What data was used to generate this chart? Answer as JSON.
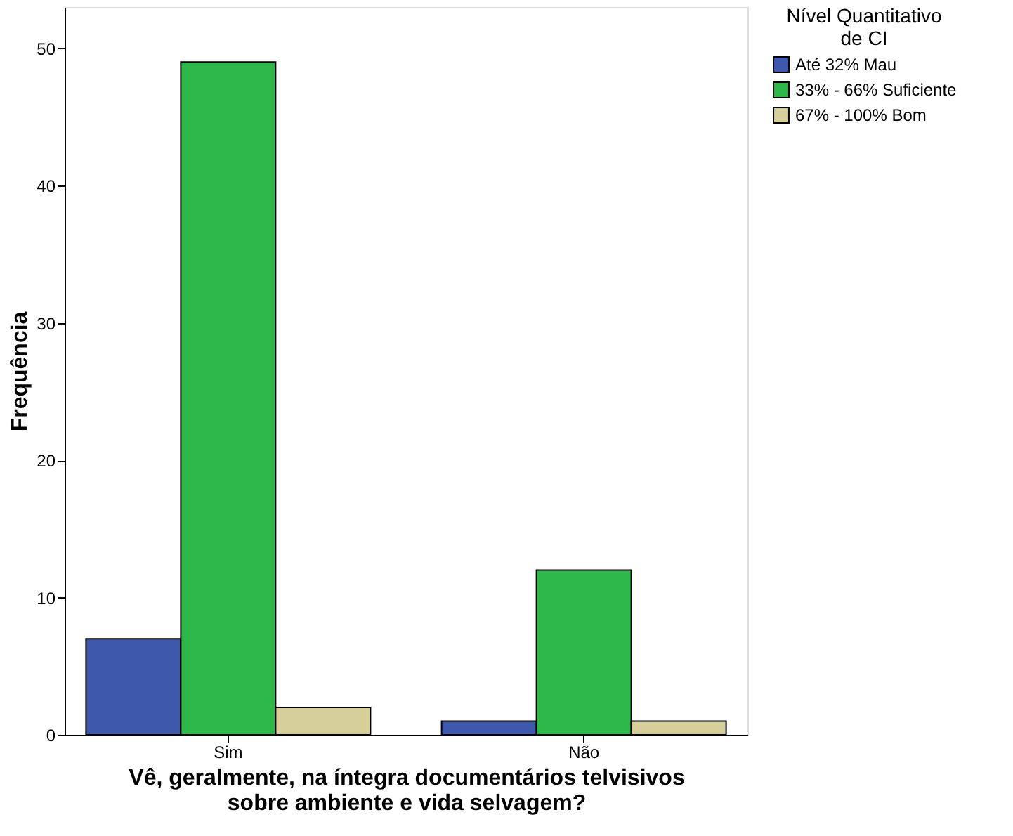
{
  "chart_data": {
    "type": "bar",
    "xlabel": "Vê, geralmente, na íntegra documentários telvisivos\nsobre ambiente e vida selvagem?",
    "ylabel": "Frequência",
    "legend_title": "Nível Quantitativo\nde CI",
    "categories": [
      "Sim",
      "Não"
    ],
    "series": [
      {
        "name": "Até 32% Mau",
        "color": "#3e58ac",
        "values": [
          7,
          1
        ]
      },
      {
        "name": "33% - 66% Suficiente",
        "color": "#2fb84a",
        "values": [
          49,
          12
        ]
      },
      {
        "name": "67% - 100% Bom",
        "color": "#d6cf9a",
        "values": [
          2,
          1
        ]
      }
    ],
    "ylim": [
      0,
      53
    ],
    "yticks": [
      0,
      10,
      20,
      30,
      40,
      50
    ],
    "grid": false,
    "legend": "top right"
  }
}
